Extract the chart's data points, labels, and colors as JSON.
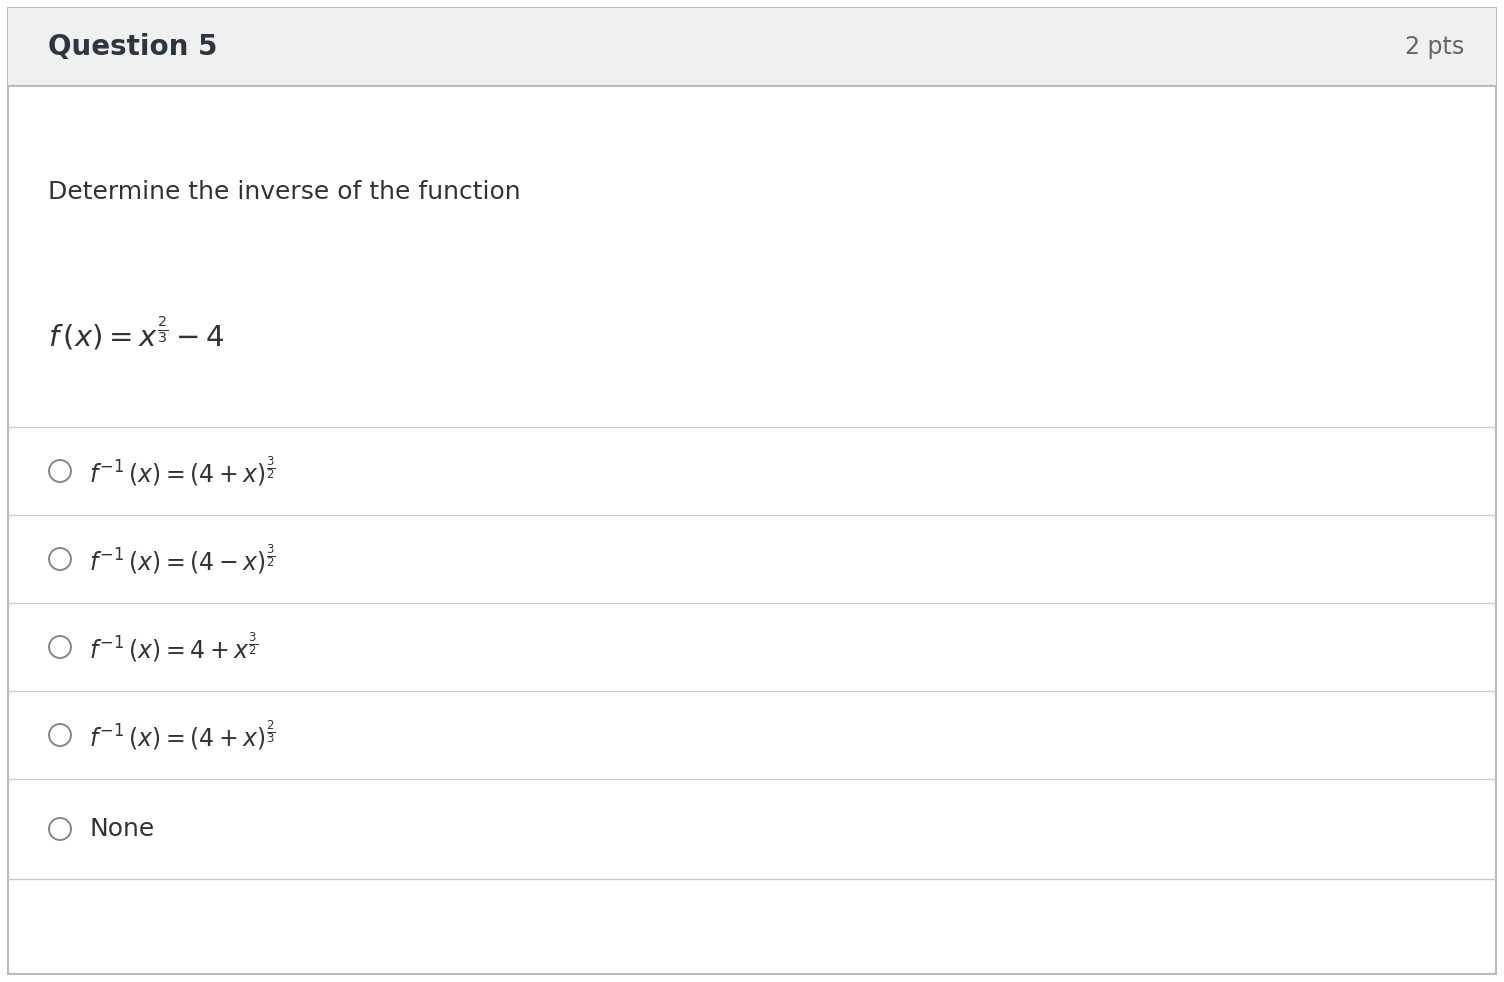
{
  "title": "Question 5",
  "pts": "2 pts",
  "prompt": "Determine the inverse of the function",
  "function": "$f\\,(x) = x^{\\frac{2}{3}} - 4$",
  "choices": [
    "$f^{-1}\\,(x) = (4 + x)^{\\frac{3}{2}}$",
    "$f^{-1}\\,(x) = (4 - x)^{\\frac{3}{2}}$",
    "$f^{-1}\\,(x) = 4 + x^{\\frac{3}{2}}$",
    "$f^{-1}\\,(x) = (4 + x)^{\\frac{2}{3}}$",
    "None"
  ],
  "header_bg": "#f0f0f0",
  "body_bg": "#ffffff",
  "border_color": "#bbbbbb",
  "title_color": "#2d3540",
  "pts_color": "#666666",
  "prompt_color": "#333333",
  "choice_color": "#333333",
  "divider_color": "#cccccc",
  "circle_color": "#888888",
  "header_fontsize": 20,
  "pts_fontsize": 17,
  "prompt_fontsize": 18,
  "function_fontsize": 19,
  "choice_fontsize": 17,
  "none_fontsize": 18,
  "fig_width": 15.04,
  "fig_height": 9.82,
  "dpi": 100
}
